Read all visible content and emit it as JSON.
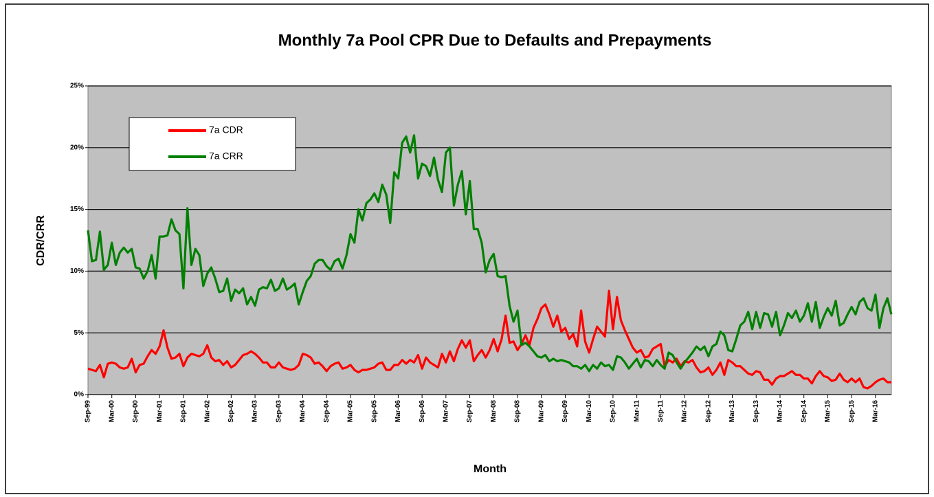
{
  "chart_data": {
    "type": "line",
    "title": "Monthly 7a Pool CPR Due to Defaults and Prepayments",
    "x_label": "Month",
    "y_label": "CDR/CRR",
    "categories": [
      "Sep-99",
      null,
      null,
      null,
      null,
      null,
      "Mar-00",
      null,
      null,
      null,
      null,
      null,
      "Sep-00",
      null,
      null,
      null,
      null,
      null,
      "Mar-01",
      null,
      null,
      null,
      null,
      null,
      "Sep-01",
      null,
      null,
      null,
      null,
      null,
      "Mar-02",
      null,
      null,
      null,
      null,
      null,
      "Sep-02",
      null,
      null,
      null,
      null,
      null,
      "Mar-03",
      null,
      null,
      null,
      null,
      null,
      "Sep-03",
      null,
      null,
      null,
      null,
      null,
      "Mar-04",
      null,
      null,
      null,
      null,
      null,
      "Sep-04",
      null,
      null,
      null,
      null,
      null,
      "Mar-05",
      null,
      null,
      null,
      null,
      null,
      "Sep-05",
      null,
      null,
      null,
      null,
      null,
      "Mar-06",
      null,
      null,
      null,
      null,
      null,
      "Sep-06",
      null,
      null,
      null,
      null,
      null,
      "Mar-07",
      null,
      null,
      null,
      null,
      null,
      "Sep-07",
      null,
      null,
      null,
      null,
      null,
      "Mar-08",
      null,
      null,
      null,
      null,
      null,
      "Sep-08",
      null,
      null,
      null,
      null,
      null,
      "Mar-09",
      null,
      null,
      null,
      null,
      null,
      "Sep-09",
      null,
      null,
      null,
      null,
      null,
      "Mar-10",
      null,
      null,
      null,
      null,
      null,
      "Sep-10",
      null,
      null,
      null,
      null,
      null,
      "Mar-11",
      null,
      null,
      null,
      null,
      null,
      "Sep-11",
      null,
      null,
      null,
      null,
      null,
      "Mar-12",
      null,
      null,
      null,
      null,
      null,
      "Sep-12",
      null,
      null,
      null,
      null,
      null,
      "Mar-13",
      null,
      null,
      null,
      null,
      null,
      "Sep-13",
      null,
      null,
      null,
      null,
      null,
      "Mar-14",
      null,
      null,
      null,
      null,
      null,
      "Sep-14",
      null,
      null,
      null,
      null,
      null,
      "Mar-15",
      null,
      null,
      null,
      null,
      null,
      "Sep-15",
      null,
      null,
      null,
      null,
      null,
      "Mar-16",
      null,
      null,
      null,
      null
    ],
    "series": [
      {
        "name": "7a CDR",
        "color": "#ff0000",
        "values": [
          2.1,
          2.0,
          1.9,
          2.4,
          1.4,
          2.5,
          2.6,
          2.5,
          2.2,
          2.1,
          2.2,
          2.9,
          1.8,
          2.4,
          2.5,
          3.1,
          3.6,
          3.3,
          3.9,
          5.2,
          3.8,
          2.9,
          3.0,
          3.3,
          2.3,
          3.0,
          3.3,
          3.2,
          3.1,
          3.3,
          4.0,
          3.0,
          2.7,
          2.8,
          2.4,
          2.7,
          2.2,
          2.4,
          2.8,
          3.2,
          3.3,
          3.5,
          3.3,
          3.0,
          2.6,
          2.6,
          2.2,
          2.2,
          2.6,
          2.2,
          2.1,
          2.0,
          2.1,
          2.4,
          3.3,
          3.2,
          3.0,
          2.5,
          2.6,
          2.3,
          1.9,
          2.3,
          2.5,
          2.6,
          2.1,
          2.2,
          2.4,
          2.0,
          1.8,
          2.0,
          2.0,
          2.1,
          2.2,
          2.5,
          2.6,
          2.0,
          2.0,
          2.4,
          2.4,
          2.8,
          2.5,
          2.8,
          2.6,
          3.2,
          2.1,
          3.0,
          2.6,
          2.4,
          2.2,
          3.3,
          2.6,
          3.5,
          2.7,
          3.7,
          4.4,
          3.8,
          4.4,
          2.7,
          3.2,
          3.6,
          3.0,
          3.6,
          4.5,
          3.5,
          4.5,
          6.4,
          4.2,
          4.3,
          3.6,
          4.1,
          4.8,
          4.0,
          5.4,
          6.1,
          7.0,
          7.3,
          6.5,
          5.5,
          6.4,
          5.1,
          5.4,
          4.5,
          4.9,
          3.9,
          6.8,
          4.3,
          3.4,
          4.5,
          5.5,
          5.1,
          4.7,
          8.4,
          5.3,
          7.9,
          6.0,
          5.2,
          4.5,
          3.8,
          3.4,
          3.6,
          3.0,
          3.1,
          3.7,
          3.9,
          4.1,
          2.3,
          2.8,
          2.6,
          2.9,
          2.3,
          2.7,
          2.6,
          2.8,
          2.2,
          1.8,
          1.9,
          2.2,
          1.6,
          2.0,
          2.6,
          1.6,
          2.8,
          2.6,
          2.3,
          2.3,
          2.0,
          1.7,
          1.6,
          1.9,
          1.8,
          1.2,
          1.2,
          0.8,
          1.3,
          1.5,
          1.5,
          1.7,
          1.9,
          1.6,
          1.6,
          1.3,
          1.3,
          0.9,
          1.5,
          1.9,
          1.5,
          1.4,
          1.1,
          1.2,
          1.7,
          1.2,
          1.0,
          1.3,
          1.0,
          1.3,
          0.6,
          0.5,
          0.7,
          1.0,
          1.2,
          1.3,
          1.0,
          1.0
        ]
      },
      {
        "name": "7a CRR",
        "color": "#008000",
        "values": [
          13.3,
          10.8,
          10.9,
          13.2,
          10.1,
          10.5,
          12.3,
          10.5,
          11.5,
          11.9,
          11.5,
          11.8,
          10.3,
          10.2,
          9.4,
          10.0,
          11.3,
          9.4,
          12.8,
          12.8,
          12.9,
          14.2,
          13.3,
          13.0,
          8.6,
          15.1,
          10.5,
          11.8,
          11.3,
          8.8,
          9.8,
          10.3,
          9.4,
          8.3,
          8.4,
          9.4,
          7.6,
          8.5,
          8.2,
          8.6,
          7.3,
          7.9,
          7.2,
          8.5,
          8.7,
          8.6,
          9.3,
          8.4,
          8.6,
          9.4,
          8.5,
          8.7,
          9.0,
          7.3,
          8.3,
          9.2,
          9.6,
          10.6,
          10.9,
          10.9,
          10.4,
          10.1,
          10.8,
          11.0,
          10.2,
          11.3,
          13.0,
          12.3,
          15.0,
          14.1,
          15.5,
          15.8,
          16.3,
          15.6,
          17.0,
          16.2,
          13.9,
          18.0,
          17.5,
          20.4,
          20.9,
          19.6,
          21.0,
          17.5,
          18.7,
          18.5,
          17.7,
          19.2,
          17.4,
          16.4,
          19.6,
          20.0,
          15.3,
          17.0,
          18.1,
          14.6,
          17.3,
          13.4,
          13.4,
          12.3,
          9.9,
          10.9,
          11.4,
          9.6,
          9.5,
          9.6,
          7.2,
          5.9,
          6.8,
          4.0,
          4.2,
          3.9,
          3.5,
          3.1,
          3.0,
          3.2,
          2.7,
          2.9,
          2.7,
          2.8,
          2.7,
          2.6,
          2.3,
          2.3,
          2.1,
          2.4,
          1.9,
          2.4,
          2.1,
          2.6,
          2.3,
          2.4,
          2.0,
          3.1,
          3.0,
          2.6,
          2.1,
          2.5,
          2.9,
          2.2,
          2.8,
          2.7,
          2.3,
          2.8,
          2.4,
          2.1,
          3.4,
          3.2,
          2.6,
          2.1,
          2.6,
          3.0,
          3.4,
          3.9,
          3.6,
          3.9,
          3.1,
          3.9,
          4.1,
          5.1,
          4.8,
          3.6,
          3.5,
          4.5,
          5.6,
          5.9,
          6.7,
          5.3,
          6.7,
          5.4,
          6.6,
          6.5,
          5.5,
          6.7,
          4.8,
          5.6,
          6.6,
          6.2,
          6.8,
          5.9,
          6.4,
          7.4,
          5.9,
          7.5,
          5.4,
          6.3,
          7.0,
          6.4,
          7.6,
          5.6,
          5.8,
          6.5,
          7.1,
          6.5,
          7.5,
          7.8,
          7.0,
          6.8,
          8.1,
          5.4,
          7.0,
          7.8,
          6.5
        ]
      }
    ],
    "ylim": [
      0,
      25
    ],
    "yticks": [
      {
        "value": 0,
        "label": "0%"
      },
      {
        "value": 5,
        "label": "5%"
      },
      {
        "value": 10,
        "label": "10%"
      },
      {
        "value": 15,
        "label": "15%"
      },
      {
        "value": 20,
        "label": "20%"
      },
      {
        "value": 25,
        "label": "25%"
      }
    ],
    "grid": true,
    "legend": "upper left"
  }
}
